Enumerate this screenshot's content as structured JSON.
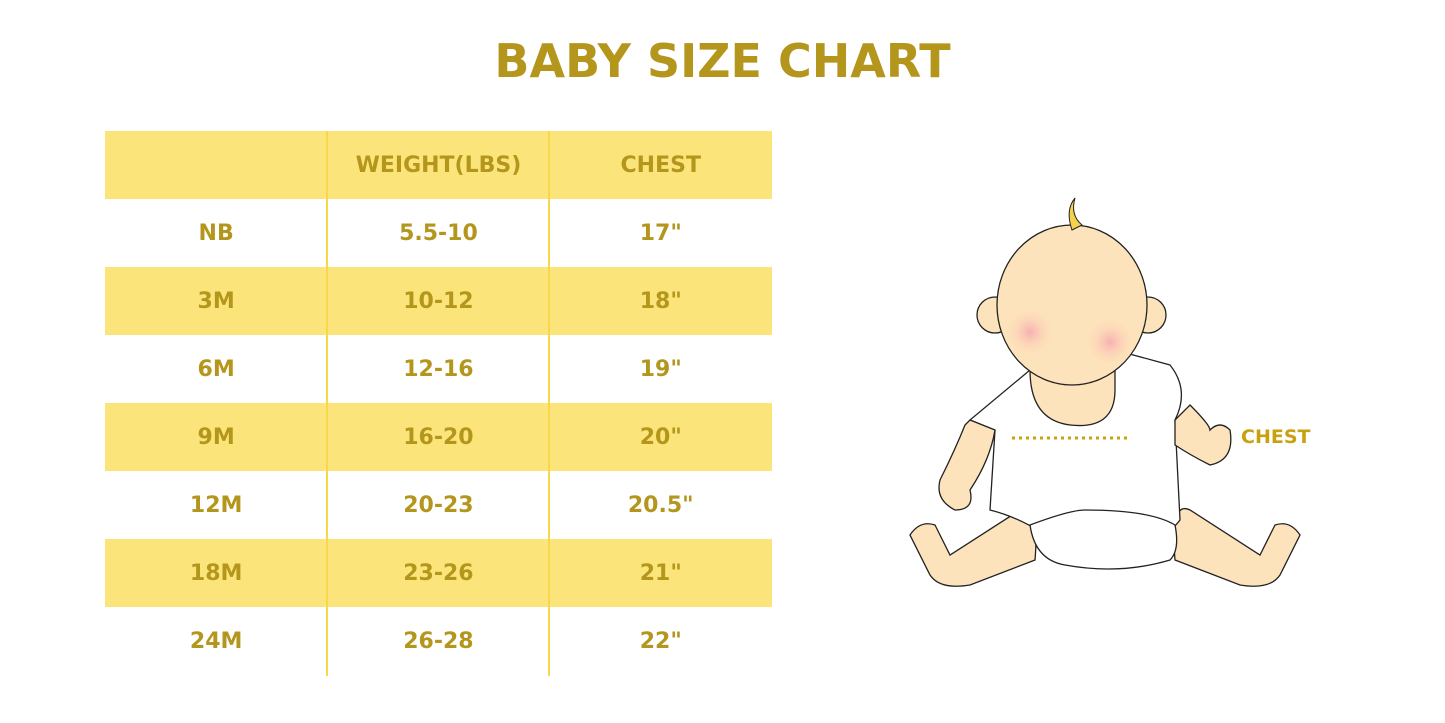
{
  "title": "BABY SIZE CHART",
  "table": {
    "headers": [
      "",
      "WEIGHT(LBS)",
      "CHEST"
    ],
    "rows": [
      [
        "NB",
        "5.5-10",
        "17\""
      ],
      [
        "3M",
        "10-12",
        "18\""
      ],
      [
        "6M",
        "12-16",
        "19\""
      ],
      [
        "9M",
        "16-20",
        "20\""
      ],
      [
        "12M",
        "20-23",
        "20.5\""
      ],
      [
        "18M",
        "23-26",
        "21\""
      ],
      [
        "24M",
        "26-28",
        "22\""
      ]
    ]
  },
  "illustration": {
    "chest_label": "CHEST"
  },
  "colors": {
    "accent": "#b5961c",
    "stripe": "#fbe57a",
    "skin": "#fde3bb"
  }
}
